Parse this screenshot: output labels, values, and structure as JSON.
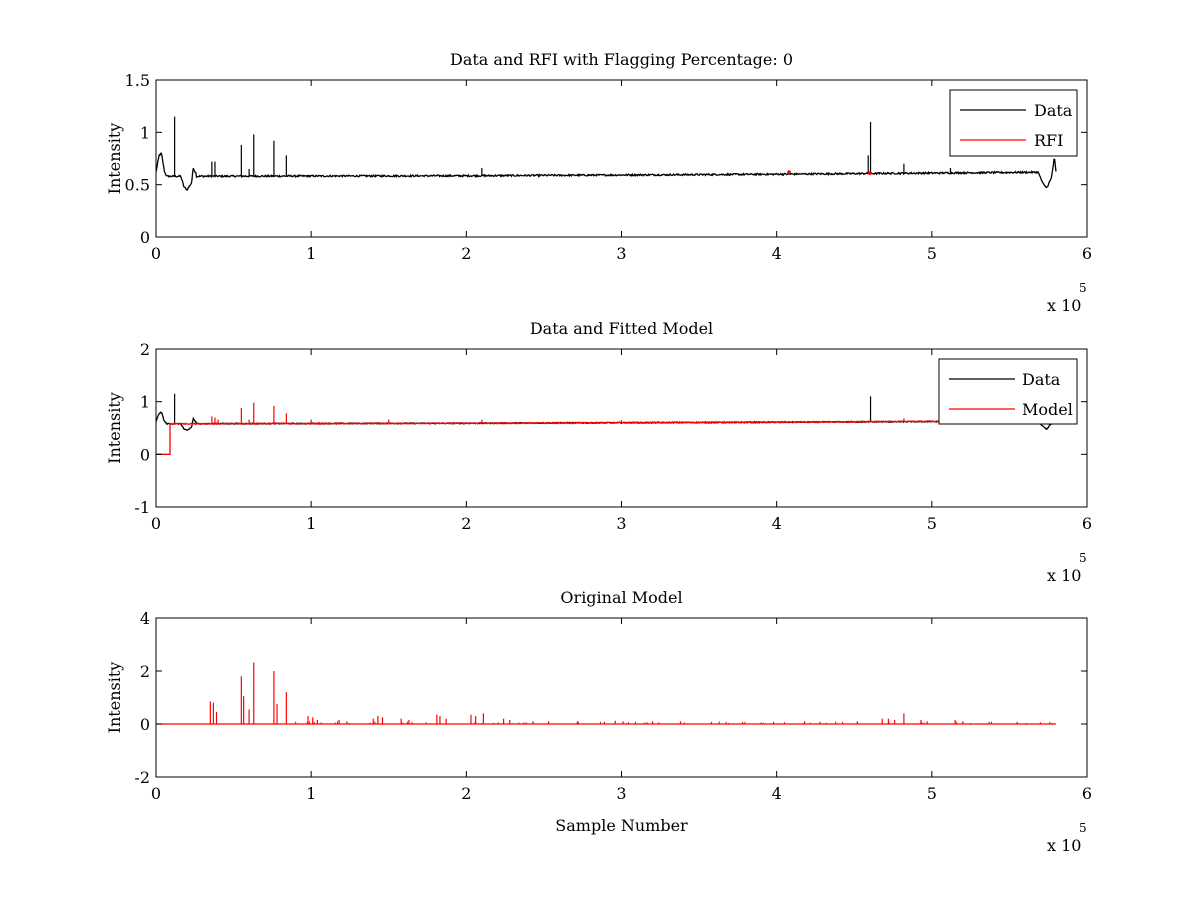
{
  "figure": {
    "background": "#ffffff"
  },
  "chart_data": [
    {
      "type": "line",
      "title": "Data and RFI with Flagging Percentage: 0",
      "xlabel": "",
      "ylabel": "Intensity",
      "xlim": [
        0,
        600000
      ],
      "ylim": [
        0,
        1.5
      ],
      "x_ticks": [
        0,
        1,
        2,
        3,
        4,
        5,
        6
      ],
      "x_tick_labels": [
        "0",
        "1",
        "2",
        "3",
        "4",
        "5",
        "6"
      ],
      "x_exponent": "x 10",
      "x_exponent_power": "5",
      "y_ticks": [
        0,
        0.5,
        1,
        1.5
      ],
      "y_tick_labels": [
        "0",
        "0.5",
        "1",
        "1.5"
      ],
      "legend": {
        "position": "top-right",
        "entries": [
          "Data",
          "RFI"
        ]
      },
      "series": [
        {
          "name": "Data",
          "color": "#000000",
          "kind": "baseline",
          "x_end": 580000,
          "baseline": [
            [
              0,
              0.58
            ],
            [
              200000,
              0.585
            ],
            [
              400000,
              0.6
            ],
            [
              580000,
              0.62
            ]
          ],
          "features": [
            [
              0,
              0.62
            ],
            [
              2000,
              0.78
            ],
            [
              3500,
              0.8
            ],
            [
              5500,
              0.62
            ],
            [
              7000,
              0.58
            ],
            [
              16000,
              0.58
            ],
            [
              18000,
              0.48
            ],
            [
              20000,
              0.45
            ],
            [
              23000,
              0.52
            ],
            [
              24000,
              0.66
            ],
            [
              26000,
              0.6
            ],
            [
              569000,
              0.6
            ],
            [
              572000,
              0.5
            ],
            [
              574000,
              0.47
            ],
            [
              577000,
              0.56
            ],
            [
              579000,
              0.76
            ],
            [
              580000,
              0.62
            ]
          ],
          "noise": 0.008,
          "spikes": [
            [
              12000,
              1.15
            ],
            [
              36000,
              0.72
            ],
            [
              38000,
              0.72
            ],
            [
              55000,
              0.88
            ],
            [
              60000,
              0.65
            ],
            [
              63000,
              0.98
            ],
            [
              76000,
              0.92
            ],
            [
              84000,
              0.78
            ],
            [
              210000,
              0.66
            ],
            [
              459000,
              0.78
            ],
            [
              460500,
              1.1
            ],
            [
              482000,
              0.7
            ],
            [
              512000,
              0.66
            ]
          ]
        },
        {
          "name": "RFI",
          "color": "#ff0000",
          "kind": "points",
          "points": [
            [
              408000,
              0.62
            ],
            [
              460000,
              0.61
            ]
          ]
        }
      ]
    },
    {
      "type": "line",
      "title": "Data and Fitted Model",
      "xlabel": "",
      "ylabel": "Intensity",
      "xlim": [
        0,
        600000
      ],
      "ylim": [
        -1,
        2
      ],
      "x_ticks": [
        0,
        1,
        2,
        3,
        4,
        5,
        6
      ],
      "x_tick_labels": [
        "0",
        "1",
        "2",
        "3",
        "4",
        "5",
        "6"
      ],
      "x_exponent": "x 10",
      "x_exponent_power": "5",
      "y_ticks": [
        -1,
        0,
        1,
        2
      ],
      "y_tick_labels": [
        "-1",
        "0",
        "1",
        "2"
      ],
      "legend": {
        "position": "top-right",
        "entries": [
          "Data",
          "Model"
        ]
      },
      "series": [
        {
          "name": "Data",
          "color": "#000000",
          "kind": "baseline",
          "x_end": 580000,
          "baseline": [
            [
              0,
              0.58
            ],
            [
              200000,
              0.59
            ],
            [
              400000,
              0.61
            ],
            [
              580000,
              0.63
            ]
          ],
          "features": [
            [
              0,
              0.62
            ],
            [
              2000,
              0.78
            ],
            [
              3500,
              0.8
            ],
            [
              5500,
              0.62
            ],
            [
              7000,
              0.58
            ],
            [
              16000,
              0.58
            ],
            [
              18000,
              0.48
            ],
            [
              20000,
              0.45
            ],
            [
              23000,
              0.52
            ],
            [
              24000,
              0.68
            ],
            [
              26000,
              0.6
            ],
            [
              569000,
              0.6
            ],
            [
              572000,
              0.52
            ],
            [
              574000,
              0.48
            ],
            [
              577000,
              0.58
            ],
            [
              580000,
              0.62
            ]
          ],
          "noise": 0.01,
          "spikes": [
            [
              12000,
              1.15
            ],
            [
              460500,
              1.1
            ]
          ]
        },
        {
          "name": "Model",
          "color": "#ff0000",
          "kind": "model",
          "x_start": 0,
          "x_end": 580000,
          "pre": [
            [
              0,
              0
            ],
            [
              9000,
              0
            ],
            [
              9000,
              0.58
            ]
          ],
          "baseline": [
            [
              9000,
              0.58
            ],
            [
              200000,
              0.59
            ],
            [
              400000,
              0.61
            ],
            [
              580000,
              0.64
            ]
          ],
          "noise": 0.01,
          "spikes": [
            [
              36000,
              0.72
            ],
            [
              38000,
              0.7
            ],
            [
              40000,
              0.66
            ],
            [
              55000,
              0.88
            ],
            [
              60000,
              0.66
            ],
            [
              63000,
              0.98
            ],
            [
              76000,
              0.92
            ],
            [
              84000,
              0.78
            ],
            [
              100000,
              0.66
            ],
            [
              150000,
              0.66
            ],
            [
              210000,
              0.66
            ],
            [
              300000,
              0.65
            ],
            [
              482000,
              0.68
            ],
            [
              512000,
              0.66
            ]
          ]
        }
      ]
    },
    {
      "type": "line",
      "title": "Original Model",
      "xlabel": "Sample Number",
      "ylabel": "Intensity",
      "xlim": [
        0,
        600000
      ],
      "ylim": [
        -2,
        4
      ],
      "x_ticks": [
        0,
        1,
        2,
        3,
        4,
        5,
        6
      ],
      "x_tick_labels": [
        "0",
        "1",
        "2",
        "3",
        "4",
        "5",
        "6"
      ],
      "x_exponent": "x 10",
      "x_exponent_power": "5",
      "y_ticks": [
        -2,
        0,
        2,
        4
      ],
      "y_tick_labels": [
        "-2",
        "0",
        "2",
        "4"
      ],
      "legend": null,
      "series": [
        {
          "name": "",
          "color": "#ff0000",
          "kind": "spikes",
          "x_start": 0,
          "x_end": 580000,
          "base": 0,
          "spikes": [
            [
              35000,
              0.85
            ],
            [
              37000,
              0.8
            ],
            [
              39000,
              0.45
            ],
            [
              55000,
              1.8
            ],
            [
              56500,
              1.05
            ],
            [
              60000,
              0.55
            ],
            [
              63000,
              2.32
            ],
            [
              76000,
              2.0
            ],
            [
              78000,
              0.75
            ],
            [
              84000,
              1.2
            ],
            [
              98000,
              0.3
            ],
            [
              101000,
              0.25
            ],
            [
              104000,
              0.15
            ],
            [
              118000,
              0.15
            ],
            [
              123000,
              0.1
            ],
            [
              140000,
              0.2
            ],
            [
              143000,
              0.3
            ],
            [
              146000,
              0.25
            ],
            [
              158000,
              0.2
            ],
            [
              163000,
              0.15
            ],
            [
              181000,
              0.35
            ],
            [
              183000,
              0.3
            ],
            [
              187000,
              0.2
            ],
            [
              203000,
              0.35
            ],
            [
              206000,
              0.3
            ],
            [
              211000,
              0.4
            ],
            [
              224000,
              0.2
            ],
            [
              228000,
              0.15
            ],
            [
              243000,
              0.1
            ],
            [
              253000,
              0.1
            ],
            [
              272000,
              0.1
            ],
            [
              289000,
              0.08
            ],
            [
              296000,
              0.12
            ],
            [
              301000,
              0.1
            ],
            [
              320000,
              0.1
            ],
            [
              338000,
              0.1
            ],
            [
              358000,
              0.08
            ],
            [
              378000,
              0.08
            ],
            [
              398000,
              0.08
            ],
            [
              418000,
              0.1
            ],
            [
              428000,
              0.08
            ],
            [
              452000,
              0.1
            ],
            [
              468000,
              0.2
            ],
            [
              472000,
              0.2
            ],
            [
              476000,
              0.15
            ],
            [
              482000,
              0.4
            ],
            [
              493000,
              0.15
            ],
            [
              497000,
              0.1
            ],
            [
              515000,
              0.15
            ],
            [
              520000,
              0.1
            ],
            [
              537000,
              0.08
            ],
            [
              555000,
              0.08
            ],
            [
              570000,
              0.06
            ]
          ],
          "small_density": 0.04
        }
      ]
    }
  ]
}
